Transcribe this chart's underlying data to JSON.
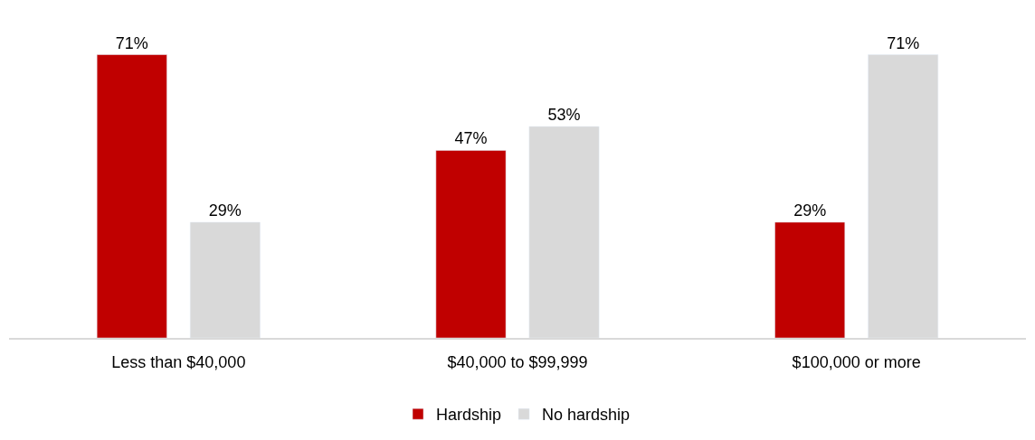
{
  "chart_data": {
    "type": "bar",
    "categories": [
      "Less than $40,000",
      "$40,000 to $99,999",
      "$100,000 or more"
    ],
    "series": [
      {
        "name": "Hardship",
        "color": "#c00000",
        "values": [
          71,
          47,
          29
        ],
        "value_labels": [
          "71%",
          "47%",
          "29%"
        ]
      },
      {
        "name": "No hardship",
        "color": "#d9d9d9",
        "values": [
          29,
          53,
          71
        ],
        "value_labels": [
          "29%",
          "53%",
          "71%"
        ]
      }
    ],
    "legend": "bottom"
  }
}
